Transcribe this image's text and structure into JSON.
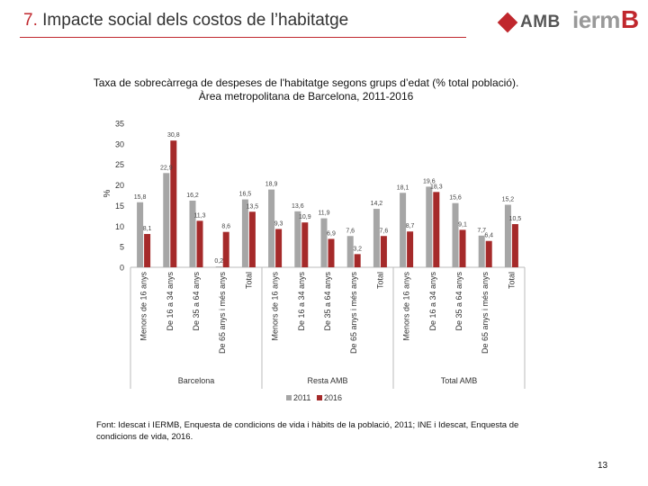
{
  "slide": {
    "number": "7.",
    "title": "Impacte social dels costos de l’habitatge",
    "logo_amb": "AMB",
    "logo_iermb_text": "ierm",
    "logo_iermb_b": "B",
    "page_number": "13"
  },
  "colors": {
    "s2011": "#a6a6a6",
    "s2016": "#a52a2a",
    "accent": "#c0272d"
  },
  "chart_data": {
    "type": "bar",
    "title": "Taxa de sobrecàrrega de despeses de l'habitatge segons grups d’edat (% total població). Àrea metropolitana de Barcelona, 2011-2016",
    "ylabel": "%",
    "ylim": [
      0,
      35
    ],
    "yticks": [
      "0",
      "5",
      "10",
      "15",
      "20",
      "25",
      "30",
      "35"
    ],
    "categories": [
      "Menors de 16 anys",
      "De 16 a 34 anys",
      "De 35 a 64 anys",
      "De 65 anys i més anys",
      "Total"
    ],
    "groups": [
      {
        "name": "Barcelona",
        "s2011": [
          15.8,
          22.9,
          16.2,
          0.2,
          16.5
        ],
        "s2016": [
          8.1,
          30.8,
          11.3,
          8.6,
          13.5
        ],
        "labels2011": [
          "15,8",
          "22,9",
          "16,2",
          "0,2",
          "16,5"
        ],
        "labels2016": [
          "8,1",
          "30,8",
          "11,3",
          "8,6",
          "13,5"
        ]
      },
      {
        "name": "Resta AMB",
        "s2011": [
          18.9,
          13.6,
          11.9,
          7.6,
          14.2
        ],
        "s2016": [
          9.3,
          10.9,
          6.9,
          3.2,
          7.6
        ],
        "labels2011": [
          "18,9",
          "13,6",
          "11,9",
          "7,6",
          "14,2"
        ],
        "labels2016": [
          "9,3",
          "10,9",
          "6,9",
          "3,2",
          "7,6"
        ]
      },
      {
        "name": "Total AMB",
        "s2011": [
          18.1,
          19.6,
          15.6,
          7.7,
          15.2
        ],
        "s2016": [
          8.7,
          18.3,
          9.1,
          6.4,
          10.5
        ],
        "labels2011": [
          "18,1",
          "19,6",
          "15,6",
          "7,7",
          "15,2"
        ],
        "labels2016": [
          "8,7",
          "18,3",
          "9,1",
          "6,4",
          "10,5"
        ]
      }
    ],
    "legend": [
      "2011",
      "2016"
    ],
    "legend_position": "bottom"
  },
  "source": "Font: Idescat i IERMB, Enquesta de condicions de vida i hàbits de la població, 2011; INE i Idescat, Enquesta de condicions de vida, 2016."
}
